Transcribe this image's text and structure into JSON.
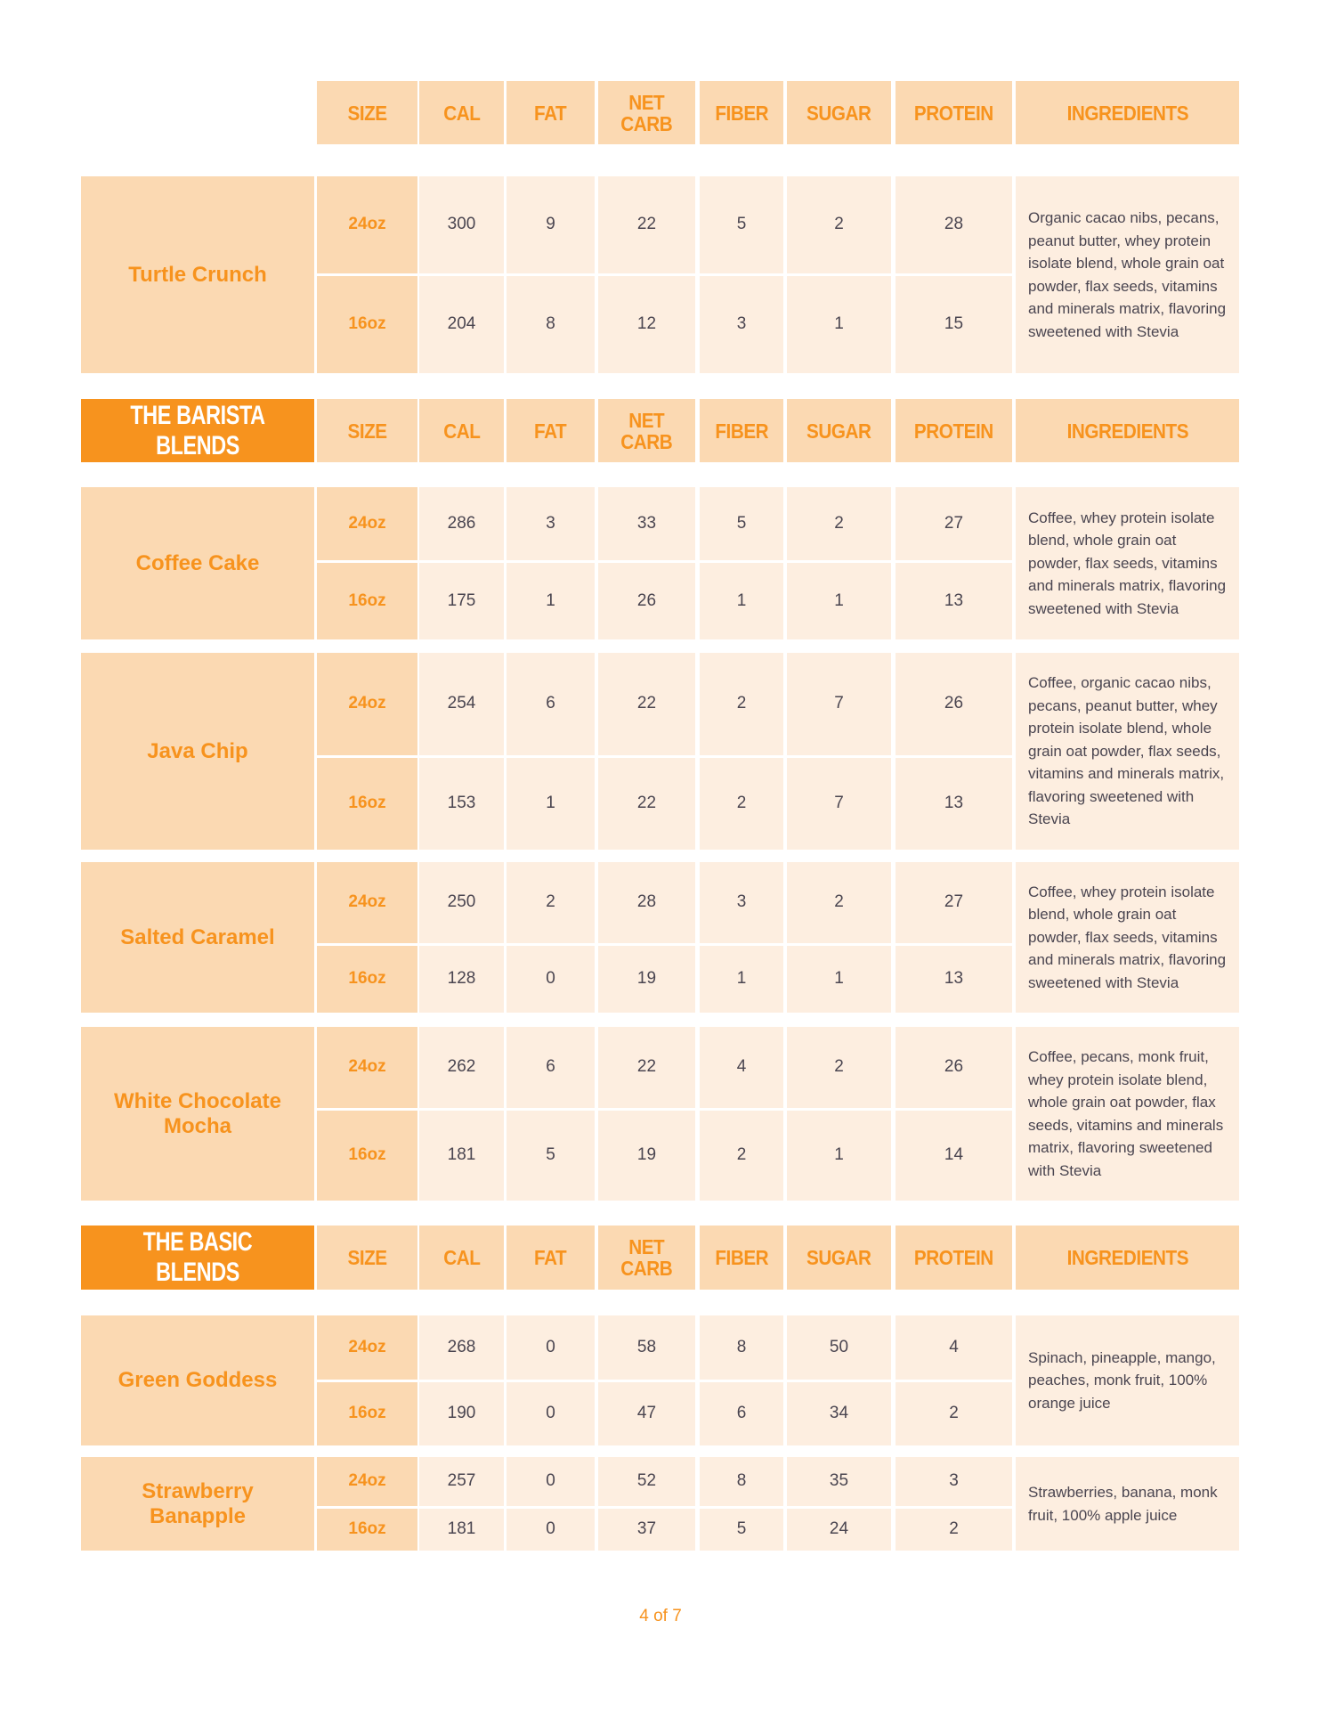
{
  "columns": [
    "SIZE",
    "CAL",
    "FAT",
    "NET\nCARB",
    "FIBER",
    "SUGAR",
    "PROTEIN",
    "INGREDIENTS"
  ],
  "colors": {
    "accent": "#f7931e",
    "header_bg": "#fbd9b2",
    "cell_bg": "#fdeee0",
    "text": "#4a4550"
  },
  "sections": [
    {
      "banner": "",
      "products": [
        {
          "name": "Turtle Crunch",
          "rows": [
            {
              "size": "24oz",
              "cal": "300",
              "fat": "9",
              "net_carb": "22",
              "fiber": "5",
              "sugar": "2",
              "protein": "28"
            },
            {
              "size": "16oz",
              "cal": "204",
              "fat": "8",
              "net_carb": "12",
              "fiber": "3",
              "sugar": "1",
              "protein": "15"
            }
          ],
          "ingredients": "Organic cacao nibs, pecans, peanut butter, whey protein isolate blend, whole grain oat powder, flax seeds, vitamins and minerals matrix, flavoring sweetened with Stevia"
        }
      ]
    },
    {
      "banner": "THE BARISTA BLENDS",
      "products": [
        {
          "name": "Coffee Cake",
          "rows": [
            {
              "size": "24oz",
              "cal": "286",
              "fat": "3",
              "net_carb": "33",
              "fiber": "5",
              "sugar": "2",
              "protein": "27"
            },
            {
              "size": "16oz",
              "cal": "175",
              "fat": "1",
              "net_carb": "26",
              "fiber": "1",
              "sugar": "1",
              "protein": "13"
            }
          ],
          "ingredients": "Coffee, whey protein isolate blend, whole grain oat powder, flax seeds, vitamins and minerals matrix, flavoring sweetened with Stevia"
        },
        {
          "name": "Java Chip",
          "rows": [
            {
              "size": "24oz",
              "cal": "254",
              "fat": "6",
              "net_carb": "22",
              "fiber": "2",
              "sugar": "7",
              "protein": "26"
            },
            {
              "size": "16oz",
              "cal": "153",
              "fat": "1",
              "net_carb": "22",
              "fiber": "2",
              "sugar": "7",
              "protein": "13"
            }
          ],
          "ingredients": "Coffee, organic cacao nibs, pecans, peanut butter, whey protein isolate blend, whole grain oat powder, flax seeds, vitamins and minerals matrix, flavoring sweetened with Stevia"
        },
        {
          "name": "Salted Caramel",
          "rows": [
            {
              "size": "24oz",
              "cal": "250",
              "fat": "2",
              "net_carb": "28",
              "fiber": "3",
              "sugar": "2",
              "protein": "27"
            },
            {
              "size": "16oz",
              "cal": "128",
              "fat": "0",
              "net_carb": "19",
              "fiber": "1",
              "sugar": "1",
              "protein": "13"
            }
          ],
          "ingredients": "Coffee, whey protein isolate blend, whole grain oat powder, flax seeds, vitamins and minerals matrix, flavoring sweetened with Stevia"
        },
        {
          "name": "White Chocolate Mocha",
          "rows": [
            {
              "size": "24oz",
              "cal": "262",
              "fat": "6",
              "net_carb": "22",
              "fiber": "4",
              "sugar": "2",
              "protein": "26"
            },
            {
              "size": "16oz",
              "cal": "181",
              "fat": "5",
              "net_carb": "19",
              "fiber": "2",
              "sugar": "1",
              "protein": "14"
            }
          ],
          "ingredients": "Coffee, pecans, monk fruit, whey protein isolate blend, whole grain oat powder, flax seeds, vitamins and minerals matrix, flavoring sweetened with Stevia"
        }
      ]
    },
    {
      "banner": "THE BASIC BLENDS",
      "products": [
        {
          "name": "Green Goddess",
          "rows": [
            {
              "size": "24oz",
              "cal": "268",
              "fat": "0",
              "net_carb": "58",
              "fiber": "8",
              "sugar": "50",
              "protein": "4"
            },
            {
              "size": "16oz",
              "cal": "190",
              "fat": "0",
              "net_carb": "47",
              "fiber": "6",
              "sugar": "34",
              "protein": "2"
            }
          ],
          "ingredients": "Spinach, pineapple, mango, peaches, monk fruit, 100% orange juice"
        },
        {
          "name": "Strawberry Banapple",
          "rows": [
            {
              "size": "24oz",
              "cal": "257",
              "fat": "0",
              "net_carb": "52",
              "fiber": "8",
              "sugar": "35",
              "protein": "3"
            },
            {
              "size": "16oz",
              "cal": "181",
              "fat": "0",
              "net_carb": "37",
              "fiber": "5",
              "sugar": "24",
              "protein": "2"
            }
          ],
          "ingredients": "Strawberries, banana, monk fruit, 100% apple juice"
        }
      ]
    }
  ],
  "footer": {
    "page": "4 of 7"
  }
}
